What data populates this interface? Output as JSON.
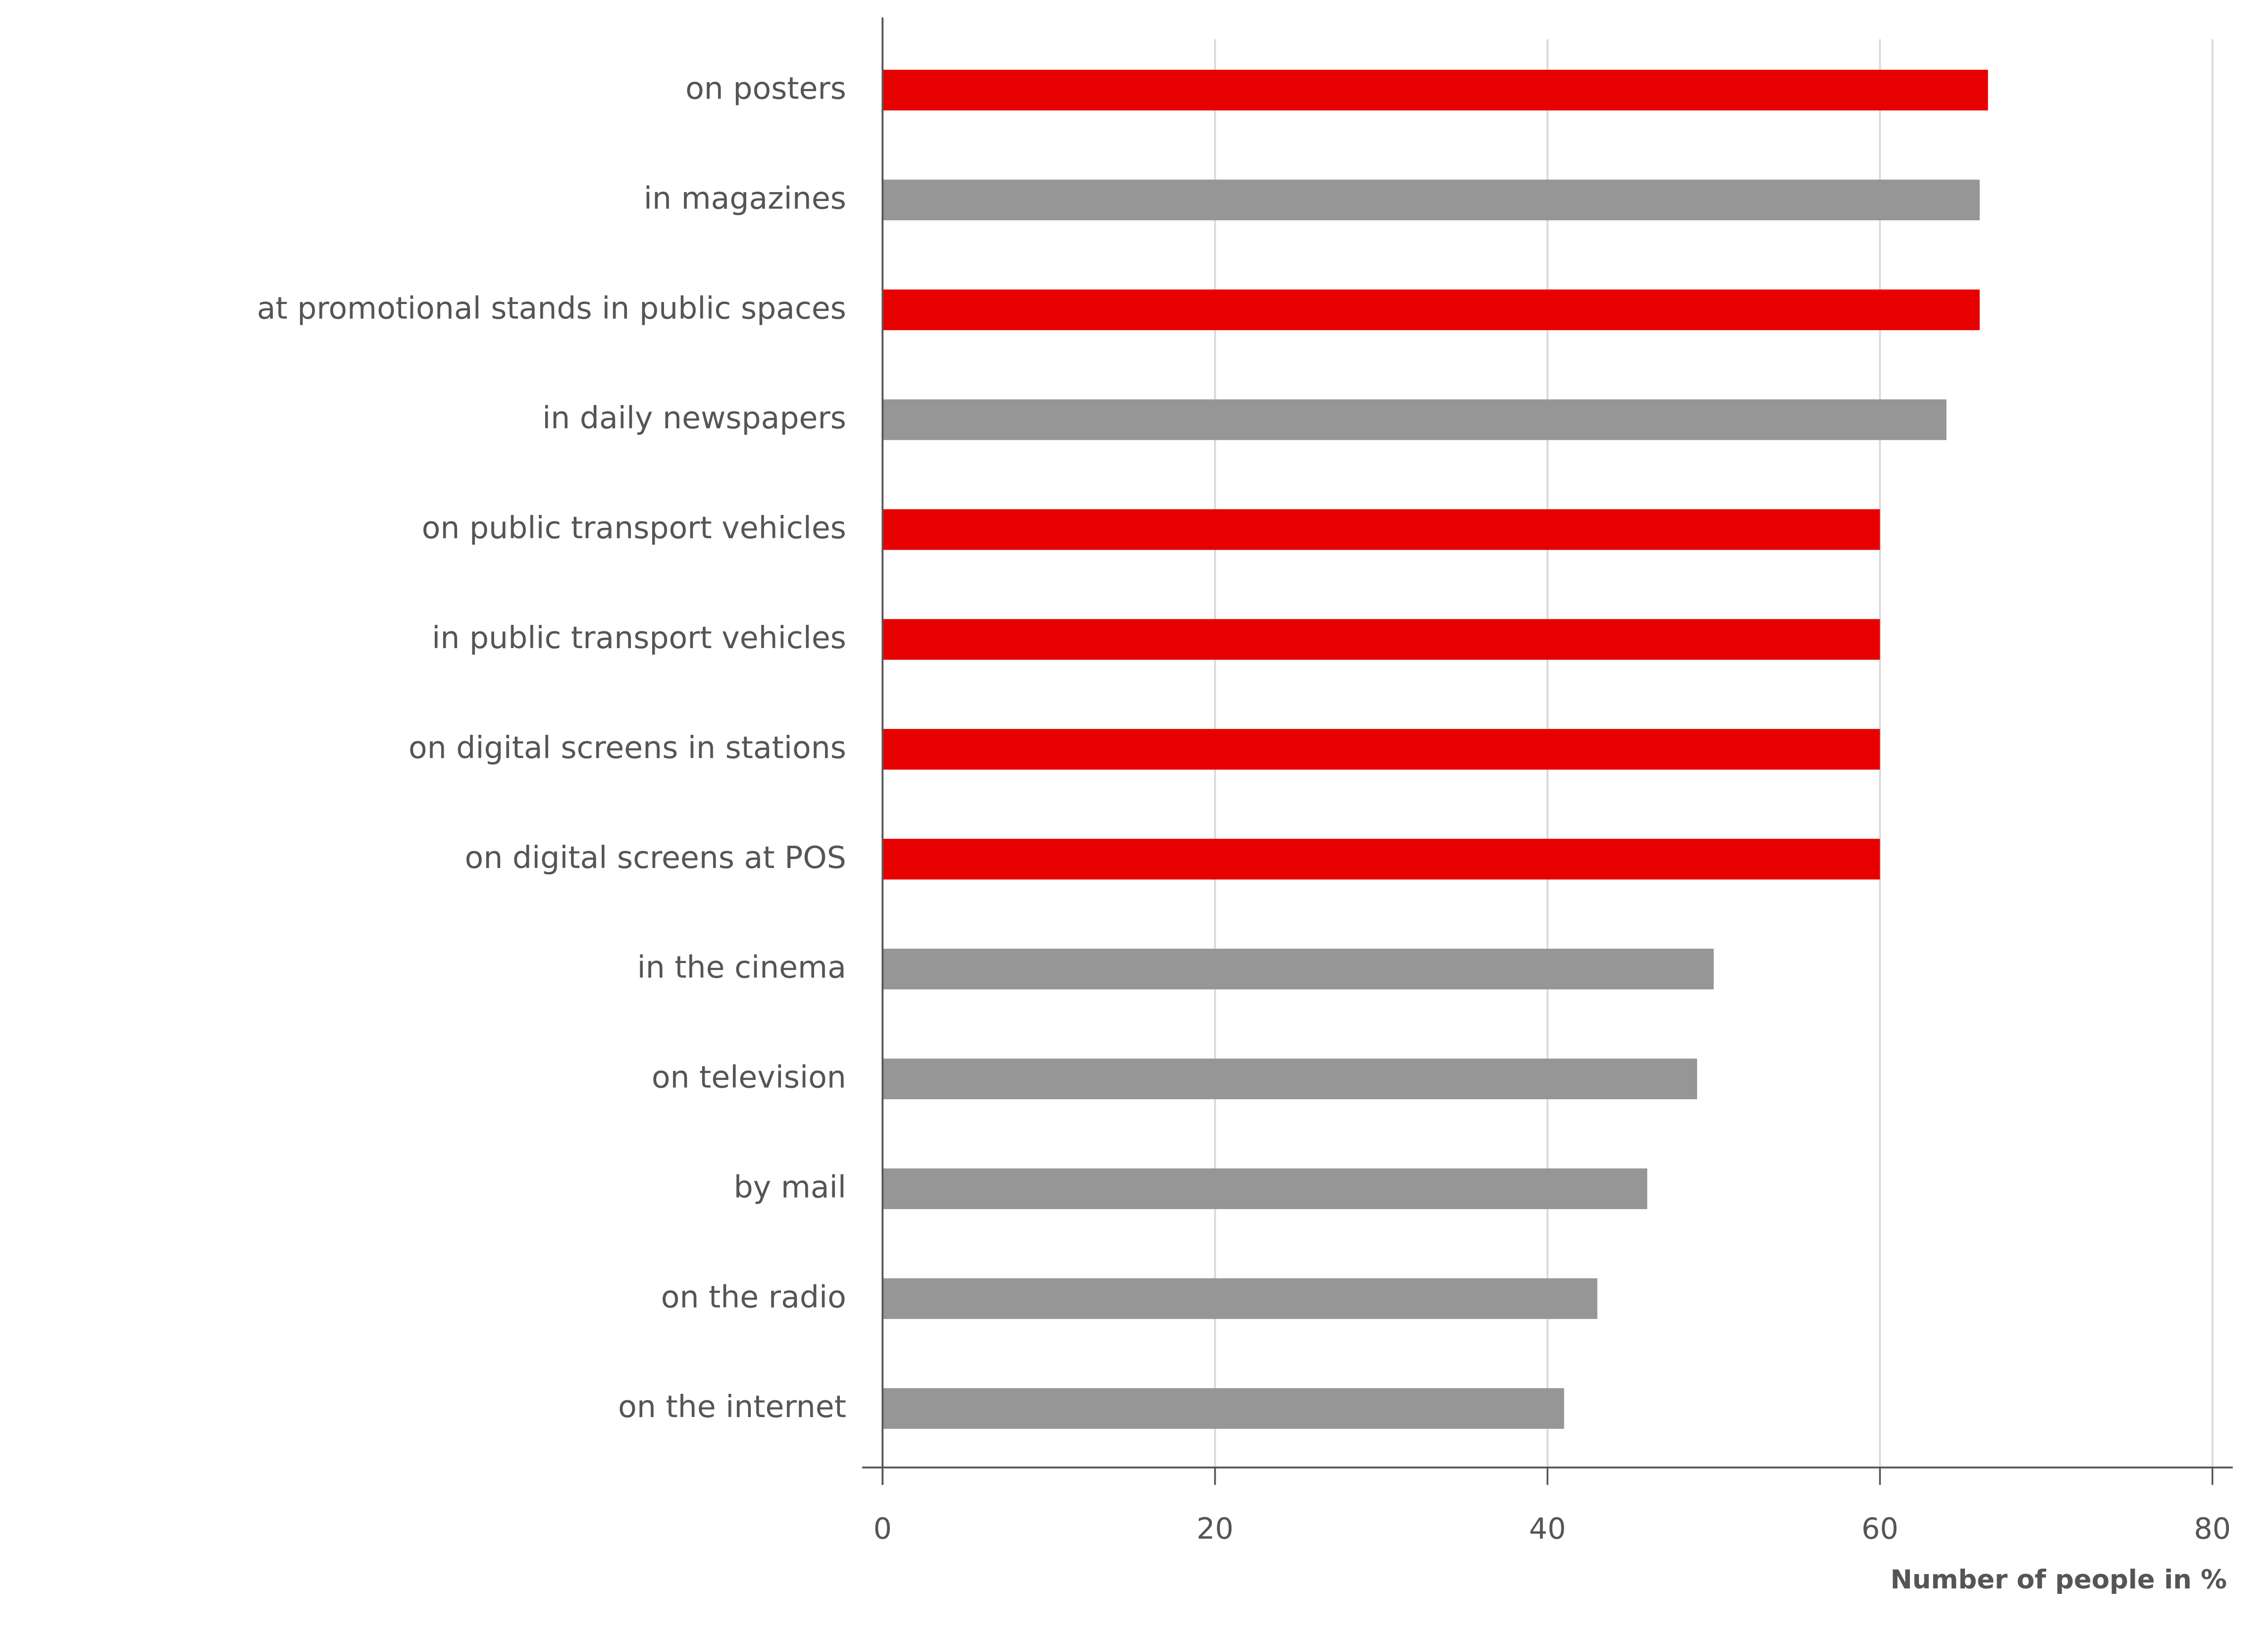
{
  "chart_data": {
    "type": "bar",
    "orientation": "horizontal",
    "title": "",
    "xlabel": "Number of people in %",
    "ylabel": "",
    "xlim": [
      0,
      80
    ],
    "xticks": [
      "0",
      "20",
      "40",
      "60",
      "80"
    ],
    "grid": true,
    "categories": [
      "on posters",
      "in magazines",
      "at promotional stands in public spaces",
      "in daily newspapers",
      "on public transport vehicles",
      "in public transport vehicles",
      "on digital screens in stations",
      "on digital screens at POS",
      "in the cinema",
      "on television",
      "by mail",
      "on the radio",
      "on the internet"
    ],
    "values": [
      66.5,
      66,
      66,
      64,
      60,
      60,
      60,
      60,
      50,
      49,
      46,
      43,
      41
    ],
    "highlight": [
      true,
      false,
      true,
      false,
      true,
      true,
      true,
      true,
      false,
      false,
      false,
      false,
      false
    ],
    "colors": {
      "highlight": "#e60000",
      "default": "#969696",
      "text": "#555555",
      "grid": "#d9d9d9",
      "axis": "#555555"
    }
  }
}
